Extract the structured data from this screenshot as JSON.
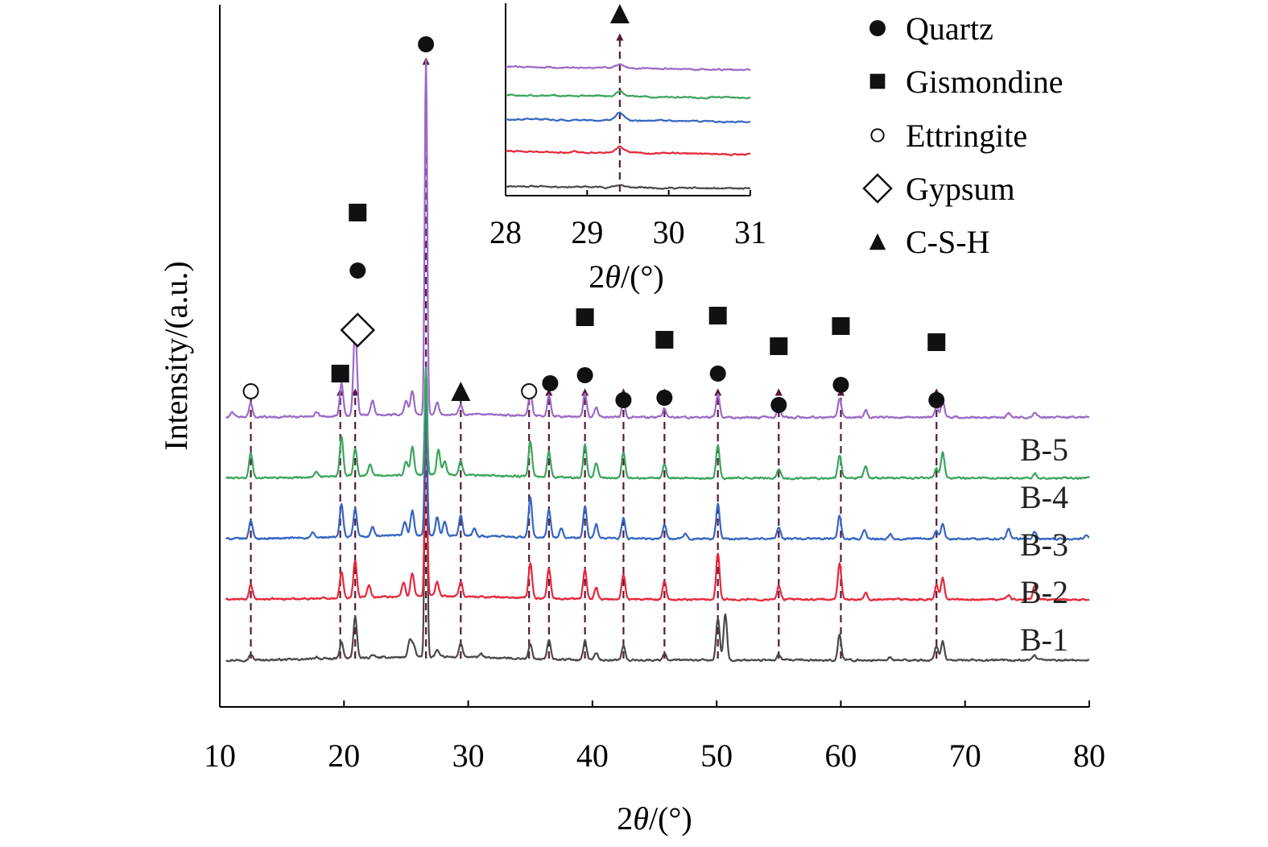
{
  "chart_data": {
    "type": "line",
    "title": "",
    "xlabel_prefix": "2",
    "xlabel_theta": "θ",
    "xlabel_suffix": "/(°)",
    "ylabel": "Intensity/(a.u.)",
    "xlim": [
      10,
      80
    ],
    "x_ticks": [
      10,
      20,
      30,
      40,
      50,
      60,
      70,
      80
    ],
    "x_tick_labels": [
      "10",
      "20",
      "30",
      "40",
      "50",
      "60",
      "70",
      "80"
    ],
    "grid": false,
    "series": [
      {
        "name": "B-1",
        "color": "#4a4a4a",
        "offset": 0,
        "peaks": [
          [
            12.5,
            0.12
          ],
          [
            17.8,
            0.05
          ],
          [
            19.8,
            0.35
          ],
          [
            20.9,
            0.9
          ],
          [
            22.3,
            0.06
          ],
          [
            25.3,
            0.35
          ],
          [
            25.6,
            0.25
          ],
          [
            26.6,
            6.2
          ],
          [
            27.5,
            0.15
          ],
          [
            29.4,
            0.3
          ],
          [
            31.0,
            0.08
          ],
          [
            35.0,
            0.3
          ],
          [
            36.5,
            0.4
          ],
          [
            39.4,
            0.4
          ],
          [
            40.3,
            0.15
          ],
          [
            42.5,
            0.3
          ],
          [
            45.8,
            0.15
          ],
          [
            50.1,
            0.9
          ],
          [
            50.7,
            1.0
          ],
          [
            55.0,
            0.12
          ],
          [
            59.9,
            0.55
          ],
          [
            63.9,
            0.06
          ],
          [
            67.7,
            0.3
          ],
          [
            68.2,
            0.4
          ],
          [
            75.6,
            0.1
          ]
        ]
      },
      {
        "name": "B-2",
        "color": "#e8283a",
        "offset": 1.3,
        "peaks": [
          [
            12.5,
            0.3
          ],
          [
            19.8,
            0.55
          ],
          [
            20.9,
            0.8
          ],
          [
            22.0,
            0.25
          ],
          [
            24.8,
            0.3
          ],
          [
            25.5,
            0.5
          ],
          [
            26.6,
            4.1
          ],
          [
            27.5,
            0.3
          ],
          [
            29.4,
            0.3
          ],
          [
            35.0,
            0.75
          ],
          [
            36.5,
            0.65
          ],
          [
            39.4,
            0.65
          ],
          [
            40.3,
            0.25
          ],
          [
            42.5,
            0.55
          ],
          [
            45.8,
            0.4
          ],
          [
            50.1,
            1.0
          ],
          [
            55.0,
            0.3
          ],
          [
            59.9,
            0.8
          ],
          [
            62.0,
            0.15
          ],
          [
            67.7,
            0.3
          ],
          [
            68.2,
            0.45
          ],
          [
            73.5,
            0.1
          ],
          [
            75.6,
            0.3
          ]
        ]
      },
      {
        "name": "B-3",
        "color": "#3566c2",
        "offset": 2.6,
        "peaks": [
          [
            12.5,
            0.4
          ],
          [
            17.5,
            0.1
          ],
          [
            19.8,
            0.7
          ],
          [
            20.9,
            0.6
          ],
          [
            22.3,
            0.2
          ],
          [
            24.9,
            0.3
          ],
          [
            25.5,
            0.55
          ],
          [
            26.6,
            3.0
          ],
          [
            27.5,
            0.4
          ],
          [
            28.1,
            0.3
          ],
          [
            29.4,
            0.45
          ],
          [
            30.5,
            0.15
          ],
          [
            35.0,
            0.85
          ],
          [
            36.5,
            0.6
          ],
          [
            37.5,
            0.2
          ],
          [
            39.4,
            0.7
          ],
          [
            40.3,
            0.3
          ],
          [
            42.5,
            0.45
          ],
          [
            45.8,
            0.3
          ],
          [
            47.5,
            0.1
          ],
          [
            50.1,
            0.75
          ],
          [
            55.0,
            0.25
          ],
          [
            59.9,
            0.5
          ],
          [
            61.9,
            0.2
          ],
          [
            64.0,
            0.1
          ],
          [
            67.7,
            0.15
          ],
          [
            68.2,
            0.3
          ],
          [
            73.5,
            0.2
          ],
          [
            75.6,
            0.15
          ],
          [
            79.8,
            0.1
          ]
        ]
      },
      {
        "name": "B-4",
        "color": "#3ca55c",
        "offset": 3.9,
        "peaks": [
          [
            12.5,
            0.55
          ],
          [
            17.8,
            0.1
          ],
          [
            19.8,
            0.85
          ],
          [
            20.9,
            0.6
          ],
          [
            22.1,
            0.25
          ],
          [
            25.0,
            0.3
          ],
          [
            25.5,
            0.6
          ],
          [
            26.6,
            2.3
          ],
          [
            27.6,
            0.55
          ],
          [
            28.1,
            0.3
          ],
          [
            29.4,
            0.3
          ],
          [
            35.0,
            0.75
          ],
          [
            36.5,
            0.55
          ],
          [
            39.4,
            0.7
          ],
          [
            40.3,
            0.3
          ],
          [
            42.5,
            0.55
          ],
          [
            45.8,
            0.3
          ],
          [
            50.1,
            0.7
          ],
          [
            55.0,
            0.2
          ],
          [
            59.9,
            0.5
          ],
          [
            62.0,
            0.25
          ],
          [
            67.7,
            0.2
          ],
          [
            68.2,
            0.55
          ],
          [
            75.6,
            0.1
          ]
        ]
      },
      {
        "name": "B-5",
        "color": "#9b6ac8",
        "offset": 5.2,
        "peaks": [
          [
            11.0,
            0.12
          ],
          [
            12.5,
            0.3
          ],
          [
            17.8,
            0.1
          ],
          [
            19.8,
            0.7
          ],
          [
            20.9,
            1.9
          ],
          [
            22.3,
            0.3
          ],
          [
            25.0,
            0.3
          ],
          [
            25.5,
            0.5
          ],
          [
            26.6,
            7.6
          ],
          [
            27.5,
            0.25
          ],
          [
            29.4,
            0.2
          ],
          [
            35.0,
            0.55
          ],
          [
            36.5,
            0.45
          ],
          [
            39.4,
            0.5
          ],
          [
            40.3,
            0.2
          ],
          [
            42.5,
            0.35
          ],
          [
            45.8,
            0.2
          ],
          [
            50.1,
            0.5
          ],
          [
            55.0,
            0.25
          ],
          [
            59.9,
            0.4
          ],
          [
            62.0,
            0.15
          ],
          [
            67.7,
            0.25
          ],
          [
            68.2,
            0.35
          ],
          [
            73.5,
            0.1
          ],
          [
            75.6,
            0.1
          ]
        ]
      }
    ],
    "reference_lines": [
      12.5,
      19.7,
      20.9,
      26.6,
      29.4,
      34.9,
      36.5,
      39.4,
      42.5,
      45.8,
      50.1,
      55.0,
      60.0,
      67.7
    ],
    "marker_groups": [
      {
        "x": 12.5,
        "markers": [
          "ettringite"
        ]
      },
      {
        "x": 19.7,
        "markers": [
          "gismondine"
        ]
      },
      {
        "x": 21.1,
        "markers": [
          "gypsum",
          "quartz",
          "gismondine"
        ]
      },
      {
        "x": 26.6,
        "markers": [
          "quartz"
        ]
      },
      {
        "x": 29.4,
        "markers": [
          "csh"
        ]
      },
      {
        "x": 34.9,
        "markers": [
          "ettringite"
        ]
      },
      {
        "x": 36.6,
        "markers": [
          "quartz"
        ]
      },
      {
        "x": 39.4,
        "markers": [
          "quartz",
          "gismondine"
        ]
      },
      {
        "x": 42.5,
        "markers": [
          "quartz"
        ]
      },
      {
        "x": 45.8,
        "markers": [
          "quartz",
          "gismondine"
        ]
      },
      {
        "x": 50.1,
        "markers": [
          "quartz",
          "gismondine"
        ]
      },
      {
        "x": 55.0,
        "markers": [
          "quartz",
          "gismondine"
        ]
      },
      {
        "x": 60.0,
        "markers": [
          "quartz",
          "gismondine"
        ]
      },
      {
        "x": 67.7,
        "markers": [
          "quartz",
          "gismondine"
        ]
      }
    ],
    "legend_position": "top-right",
    "legend": [
      {
        "marker": "quartz",
        "label": "Quartz"
      },
      {
        "marker": "gismondine",
        "label": "Gismondine"
      },
      {
        "marker": "ettringite",
        "label": "Ettringite"
      },
      {
        "marker": "gypsum",
        "label": "Gypsum"
      },
      {
        "marker": "csh",
        "label": "C-S-H"
      }
    ],
    "inset": {
      "position": "top-center",
      "xlim": [
        28,
        31
      ],
      "x_ticks": [
        28,
        29,
        30,
        31
      ],
      "x_tick_labels": [
        "28",
        "29",
        "30",
        "31"
      ],
      "xlabel_prefix": "2",
      "xlabel_theta": "θ",
      "xlabel_suffix": "/(°)",
      "reference_line": 29.4,
      "marker": "csh",
      "series": [
        {
          "name": "B-1",
          "color": "#4a4a4a",
          "peak_height": 0.12
        },
        {
          "name": "B-2",
          "color": "#e8283a",
          "peak_height": 0.3
        },
        {
          "name": "B-3",
          "color": "#3566c2",
          "peak_height": 0.38
        },
        {
          "name": "B-4",
          "color": "#3ca55c",
          "peak_height": 0.22
        },
        {
          "name": "B-5",
          "color": "#9b6ac8",
          "peak_height": 0.15
        }
      ]
    }
  }
}
